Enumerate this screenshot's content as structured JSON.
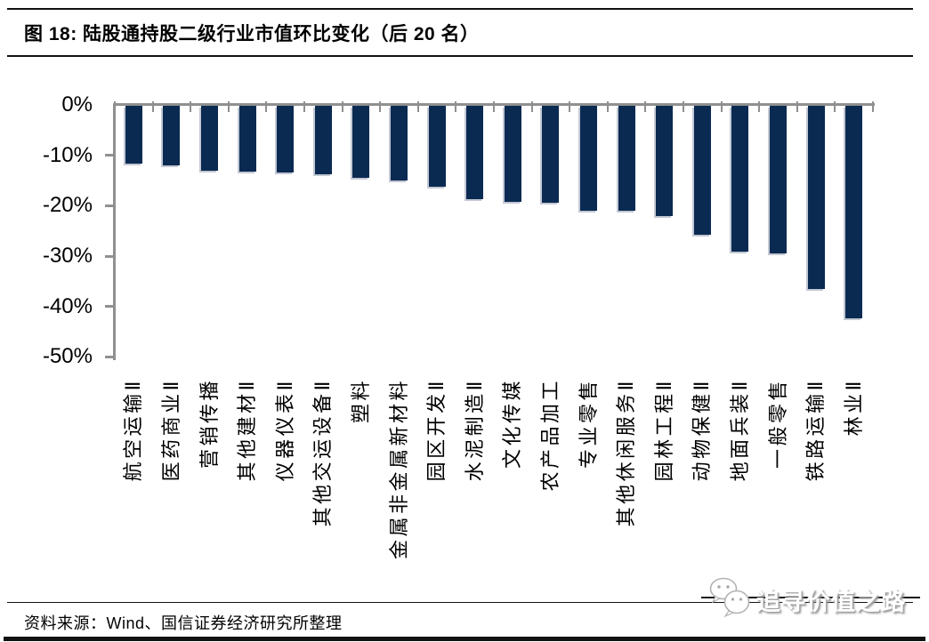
{
  "figure": {
    "title": "图 18: 陆股通持股二级行业市值环比变化（后 20 名）",
    "source": "资料来源：Wind、国信证券经济研究所整理",
    "watermark": "追寻价值之路"
  },
  "chart_data": {
    "type": "bar",
    "title": "陆股通持股二级行业市值环比变化（后 20 名）",
    "categories": [
      "航空运输Ⅱ",
      "医药商业Ⅱ",
      "营销传播",
      "其他建材Ⅱ",
      "仪器仪表Ⅱ",
      "其他交运设备Ⅱ",
      "塑料",
      "金属非金属新材料",
      "园区开发Ⅱ",
      "水泥制造Ⅱ",
      "文化传媒",
      "农产品加工",
      "专业零售",
      "其他休闲服务Ⅱ",
      "园林工程Ⅱ",
      "动物保健Ⅱ",
      "地面兵装Ⅱ",
      "一般零售",
      "铁路运输Ⅱ",
      "林业Ⅱ"
    ],
    "values": [
      -11.4,
      -11.8,
      -12.9,
      -13.1,
      -13.3,
      -13.6,
      -14.3,
      -14.9,
      -16.1,
      -18.6,
      -19.0,
      -19.3,
      -20.8,
      -20.9,
      -21.9,
      -25.5,
      -29.0,
      -29.2,
      -36.4,
      -42.1
    ],
    "unit": "%",
    "xlabel": "",
    "ylabel": "",
    "ylim": [
      -50,
      0
    ],
    "y_ticks": [
      "0%",
      "-10%",
      "-20%",
      "-30%",
      "-40%",
      "-50%"
    ],
    "grid": false,
    "legend": null,
    "bar_color": "#0A2A52",
    "axis_color": "#909090"
  }
}
